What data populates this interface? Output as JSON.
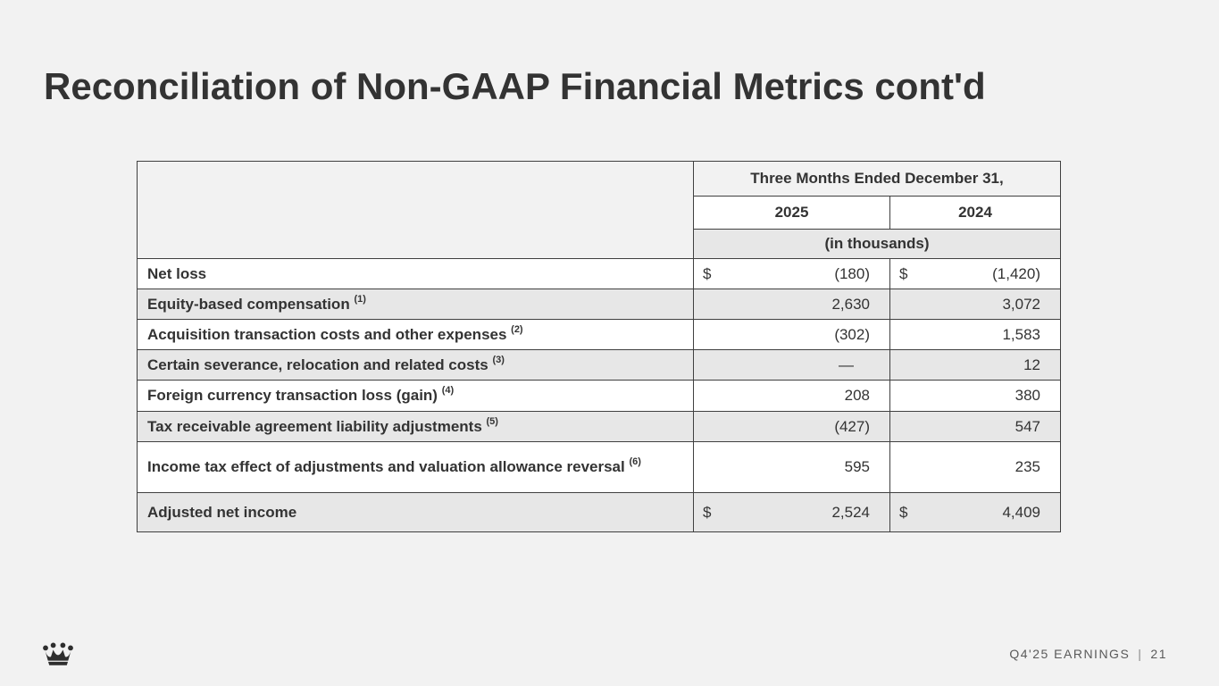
{
  "slide": {
    "title": "Reconciliation of Non-GAAP Financial Metrics cont'd",
    "footer": {
      "label": "Q4'25 EARNINGS",
      "separator": "|",
      "page_number": "21",
      "logo": "crown-icon"
    },
    "colors": {
      "background": "#f2f2f2",
      "row_shaded": "#e7e7e7",
      "row_white": "#ffffff",
      "table_border": "#404040",
      "text": "#333333",
      "footer_text": "#5a5a5a",
      "logo": "#2e2e2e"
    }
  },
  "table": {
    "header": {
      "period_label": "Three Months Ended December 31,",
      "years": [
        "2025",
        "2024"
      ],
      "units_label": "(in thousands)"
    },
    "rows": [
      {
        "label": "Net loss",
        "footnote": "",
        "dollar": true,
        "values": [
          "(180)",
          "(1,420)"
        ]
      },
      {
        "label": "Equity-based compensation",
        "footnote": "(1)",
        "dollar": false,
        "values": [
          "2,630",
          "3,072"
        ]
      },
      {
        "label": "Acquisition transaction costs and other expenses",
        "footnote": "(2)",
        "dollar": false,
        "values": [
          "(302)",
          "1,583"
        ]
      },
      {
        "label": "Certain severance, relocation and related costs",
        "footnote": "(3)",
        "dollar": false,
        "values": [
          "—",
          "12"
        ]
      },
      {
        "label": "Foreign currency transaction loss (gain)",
        "footnote": "(4)",
        "dollar": false,
        "values": [
          "208",
          "380"
        ]
      },
      {
        "label": "Tax receivable agreement liability adjustments",
        "footnote": "(5)",
        "dollar": false,
        "values": [
          "(427)",
          "547"
        ]
      },
      {
        "label": "Income tax effect of adjustments and valuation allowance reversal",
        "footnote": "(6)",
        "dollar": false,
        "values": [
          "595",
          "235"
        ]
      },
      {
        "label": "Adjusted net income",
        "footnote": "",
        "dollar": true,
        "values": [
          "2,524",
          "4,409"
        ]
      }
    ]
  }
}
